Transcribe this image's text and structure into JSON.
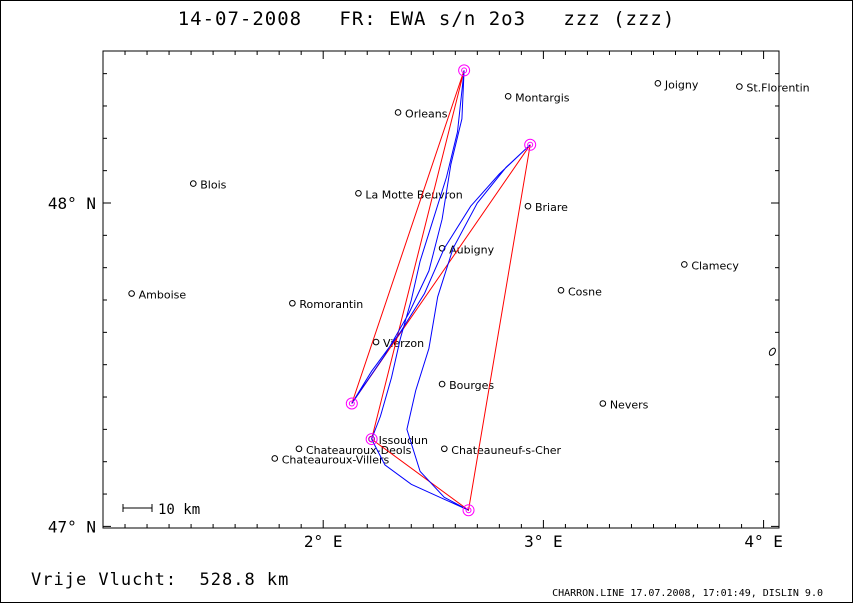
{
  "title": "14-07-2008   FR: EWA s/n 2o3   zzz (zzz)",
  "distance_label": "Vrije Vlucht:  528.8 km",
  "footer": "CHARRON.LINE 17.07.2008, 17:01:49, DISLIN 9.0",
  "scale_label": "10 km",
  "x_ticks": [
    "2° E",
    "3° E",
    "4° E"
  ],
  "y_ticks": [
    "47° N",
    "48° N"
  ],
  "colors": {
    "track": "#0000ff",
    "route": "#ff0000",
    "turnpoint": "#ff00ff",
    "frame": "#000000"
  },
  "cities": [
    {
      "name": "Orleans",
      "lon": 2.34,
      "lat": 48.28
    },
    {
      "name": "Montargis",
      "lon": 2.84,
      "lon_label": true,
      "lat": 48.33
    },
    {
      "name": "Joigny",
      "lon": 3.52,
      "lat": 48.37
    },
    {
      "name": "St.Florentin",
      "lon": 3.89,
      "lat": 48.36
    },
    {
      "name": "Blois",
      "lon": 1.41,
      "lat": 48.06
    },
    {
      "name": "La Motte Beuvron",
      "lon": 2.16,
      "lat": 48.03
    },
    {
      "name": "Briare",
      "lon": 2.93,
      "lat": 47.99
    },
    {
      "name": "Aubigny",
      "lon": 2.54,
      "lat": 47.86
    },
    {
      "name": "Clamecy",
      "lon": 3.64,
      "lat": 47.81
    },
    {
      "name": "Amboise",
      "lon": 1.13,
      "lat": 47.72
    },
    {
      "name": "Cosne",
      "lon": 3.08,
      "lat": 47.73
    },
    {
      "name": "Romorantin",
      "lon": 1.86,
      "lat": 47.69
    },
    {
      "name": "Vierzon",
      "lon": 2.24,
      "lat": 47.57
    },
    {
      "name": "Bourges",
      "lon": 2.54,
      "lat": 47.44
    },
    {
      "name": "Nevers",
      "lon": 3.27,
      "lat": 47.38
    },
    {
      "name": "Issoudun",
      "lon": 2.22,
      "lat": 47.27
    },
    {
      "name": "Chateauroux-Deols",
      "lon": 1.89,
      "lat": 47.24
    },
    {
      "name": "Chateauroux-Villers",
      "lon": 1.78,
      "lat": 47.21
    },
    {
      "name": "Chateauneuf-s-Cher",
      "lon": 2.55,
      "lat": 47.24
    }
  ],
  "route": [
    {
      "lon": 2.22,
      "lat": 47.27
    },
    {
      "lon": 2.64,
      "lat": 48.41
    },
    {
      "lon": 2.13,
      "lat": 47.38
    },
    {
      "lon": 2.94,
      "lat": 48.18
    },
    {
      "lon": 2.66,
      "lat": 47.05
    },
    {
      "lon": 2.22,
      "lat": 47.27
    }
  ],
  "track": [
    {
      "lon": 2.22,
      "lat": 47.27
    },
    {
      "lon": 2.26,
      "lat": 47.34
    },
    {
      "lon": 2.31,
      "lat": 47.46
    },
    {
      "lon": 2.35,
      "lat": 47.58
    },
    {
      "lon": 2.4,
      "lat": 47.7
    },
    {
      "lon": 2.44,
      "lat": 47.82
    },
    {
      "lon": 2.5,
      "lat": 47.95
    },
    {
      "lon": 2.56,
      "lat": 48.08
    },
    {
      "lon": 2.61,
      "lat": 48.22
    },
    {
      "lon": 2.64,
      "lat": 48.41
    },
    {
      "lon": 2.63,
      "lat": 48.26
    },
    {
      "lon": 2.58,
      "lat": 48.12
    },
    {
      "lon": 2.54,
      "lat": 47.95
    },
    {
      "lon": 2.48,
      "lat": 47.79
    },
    {
      "lon": 2.39,
      "lat": 47.66
    },
    {
      "lon": 2.28,
      "lat": 47.53
    },
    {
      "lon": 2.18,
      "lat": 47.43
    },
    {
      "lon": 2.13,
      "lat": 47.38
    },
    {
      "lon": 2.22,
      "lat": 47.48
    },
    {
      "lon": 2.35,
      "lat": 47.6
    },
    {
      "lon": 2.46,
      "lat": 47.72
    },
    {
      "lon": 2.55,
      "lat": 47.86
    },
    {
      "lon": 2.67,
      "lat": 47.99
    },
    {
      "lon": 2.8,
      "lat": 48.09
    },
    {
      "lon": 2.94,
      "lat": 48.18
    },
    {
      "lon": 2.83,
      "lat": 48.11
    },
    {
      "lon": 2.7,
      "lat": 48.0
    },
    {
      "lon": 2.59,
      "lat": 47.86
    },
    {
      "lon": 2.52,
      "lat": 47.71
    },
    {
      "lon": 2.48,
      "lat": 47.55
    },
    {
      "lon": 2.42,
      "lat": 47.42
    },
    {
      "lon": 2.38,
      "lat": 47.3
    },
    {
      "lon": 2.44,
      "lat": 47.17
    },
    {
      "lon": 2.55,
      "lat": 47.09
    },
    {
      "lon": 2.66,
      "lat": 47.05
    },
    {
      "lon": 2.53,
      "lat": 47.09
    },
    {
      "lon": 2.4,
      "lat": 47.13
    },
    {
      "lon": 2.28,
      "lat": 47.19
    },
    {
      "lon": 2.22,
      "lat": 47.27
    }
  ],
  "marker": {
    "lon": 4.04,
    "lat": 47.54
  }
}
